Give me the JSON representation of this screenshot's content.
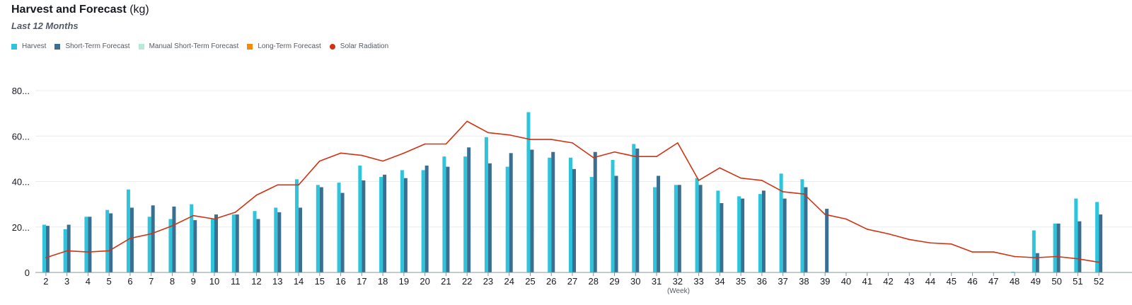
{
  "header": {
    "title": "Harvest and Forecast",
    "unit": "(kg)",
    "subtitle": "Last 12 Months"
  },
  "legend": [
    {
      "label": "Harvest",
      "color": "#2ec5dc",
      "shape": "square"
    },
    {
      "label": "Short-Term Forecast",
      "color": "#3a6f92",
      "shape": "square"
    },
    {
      "label": "Manual Short-Term Forecast",
      "color": "#b9e9d6",
      "shape": "square"
    },
    {
      "label": "Long-Term Forecast",
      "color": "#f58a07",
      "shape": "square"
    },
    {
      "label": "Solar Radiation",
      "color": "#d13212",
      "shape": "circle"
    }
  ],
  "chart_data": {
    "type": "bar",
    "xlabel": "(Week)",
    "ylabel": "",
    "ylim": [
      0,
      80
    ],
    "yticks": [
      "0",
      "20...",
      "40...",
      "60...",
      "80..."
    ],
    "grid": true,
    "legend_position": "top-left",
    "categories": [
      "2",
      "3",
      "4",
      "5",
      "6",
      "7",
      "8",
      "9",
      "10",
      "11",
      "12",
      "13",
      "14",
      "15",
      "16",
      "17",
      "18",
      "19",
      "20",
      "21",
      "22",
      "23",
      "24",
      "25",
      "26",
      "27",
      "28",
      "29",
      "30",
      "31",
      "32",
      "33",
      "34",
      "35",
      "36",
      "37",
      "38",
      "39",
      "40",
      "41",
      "42",
      "43",
      "44",
      "45",
      "46",
      "47",
      "48",
      "49",
      "50",
      "51",
      "52"
    ],
    "series": [
      {
        "name": "Harvest",
        "type": "bar",
        "color": "#2ec5dc",
        "values": [
          21,
          19,
          24.5,
          27.5,
          36.5,
          24.5,
          23.5,
          30,
          23.5,
          25.5,
          27,
          28.5,
          41,
          38.5,
          39.5,
          47,
          42,
          45,
          45,
          51,
          51,
          59.5,
          46.5,
          70.5,
          50.5,
          50.5,
          42,
          49.5,
          56.5,
          37.5,
          38.5,
          41.5,
          36,
          33.5,
          34.5,
          43.5,
          41,
          null,
          null,
          null,
          null,
          null,
          null,
          null,
          null,
          null,
          0.3,
          18.5,
          21.5,
          32.5,
          31
        ]
      },
      {
        "name": "Short-Term Forecast",
        "type": "bar",
        "color": "#3a6f92",
        "values": [
          20.5,
          21,
          24.5,
          26,
          28.5,
          29.5,
          29,
          23,
          25.5,
          25.5,
          23.5,
          26.5,
          28.5,
          37.5,
          35,
          40.5,
          43,
          41.5,
          47,
          46.5,
          55,
          48,
          52.5,
          54,
          53,
          45.5,
          53,
          42.5,
          54.5,
          42.5,
          38.5,
          38.5,
          30.5,
          32.5,
          36,
          32.5,
          37.5,
          28,
          null,
          null,
          null,
          null,
          null,
          null,
          null,
          null,
          null,
          8.5,
          21.5,
          22.5,
          25.5
        ]
      },
      {
        "name": "Solar Radiation",
        "type": "line",
        "color": "#d13212",
        "values": [
          6.5,
          9.5,
          9,
          9.5,
          15,
          17,
          20.5,
          25,
          23.5,
          26.5,
          34,
          38.5,
          38.5,
          49,
          52.5,
          51.5,
          49,
          52.5,
          56.5,
          56.5,
          66.5,
          61.5,
          60.5,
          58.5,
          58.5,
          57,
          50.5,
          53,
          51,
          51,
          57,
          40.5,
          46,
          41.5,
          40.5,
          35.5,
          34.5,
          25.5,
          23.5,
          19,
          17,
          14.5,
          13,
          12.5,
          9,
          9,
          7,
          6.5,
          7,
          6,
          4.5
        ]
      }
    ]
  }
}
